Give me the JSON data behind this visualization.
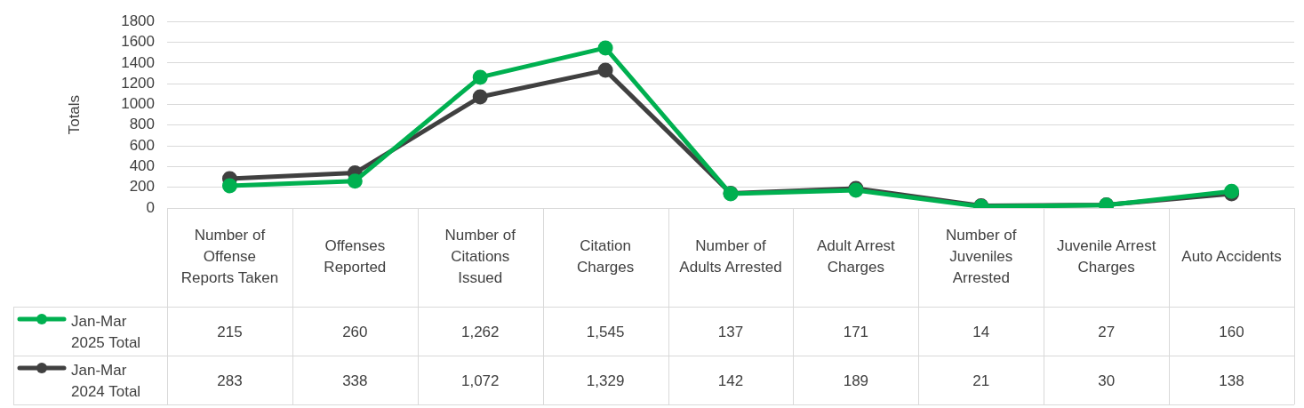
{
  "chart_data": {
    "type": "line",
    "ylabel": "Totals",
    "categories": [
      "Number of Offense Reports Taken",
      "Offenses Reported",
      "Number of Citations Issued",
      "Citation Charges",
      "Number of Adults Arrested",
      "Adult Arrest Charges",
      "Number of Juveniles Arrested",
      "Juvenile Arrest Charges",
      "Auto Accidents"
    ],
    "series": [
      {
        "name": "Jan-Mar 2025 Total",
        "color": "#00b050",
        "values": [
          215,
          260,
          1262,
          1545,
          137,
          171,
          14,
          27,
          160
        ],
        "value_labels": [
          "215",
          "260",
          "1,262",
          "1,545",
          "137",
          "171",
          "14",
          "27",
          "160"
        ]
      },
      {
        "name": "Jan-Mar 2024 Total",
        "color": "#404040",
        "values": [
          283,
          338,
          1072,
          1329,
          142,
          189,
          21,
          30,
          138
        ],
        "value_labels": [
          "283",
          "338",
          "1,072",
          "1,329",
          "142",
          "189",
          "21",
          "30",
          "138"
        ]
      }
    ],
    "ylim": [
      0,
      1800
    ],
    "yticks": [
      0,
      200,
      400,
      600,
      800,
      1000,
      1200,
      1400,
      1600,
      1800
    ],
    "grid": "y",
    "legend": "bottom left",
    "marker": "circle",
    "line_style": "solid"
  }
}
